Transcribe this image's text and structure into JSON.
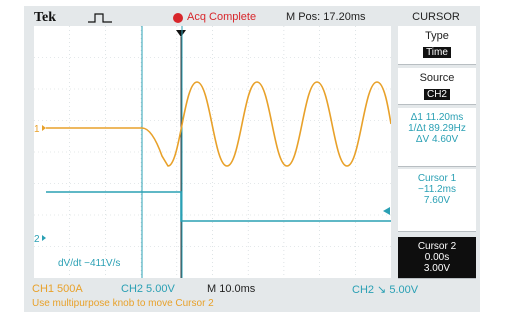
{
  "header": {
    "brand": "Tek",
    "trigger_icon": "pulse-icon",
    "acq_status": "Acq Complete",
    "acq_indicator_color": "#d8262b",
    "m_pos": "M Pos: 17.20ms"
  },
  "screen": {
    "ch1_marker": "1",
    "ch2_marker": "2",
    "ch1_color": "#e8a12a",
    "ch2_color": "#2aa0b4",
    "dvdt": "dV/dt −411V/s"
  },
  "menu": {
    "title": "CURSOR",
    "type_label": "Type",
    "type_value": "Time",
    "source_label": "Source",
    "source_value": "CH2",
    "readout": {
      "delta_t": "Δ1 11.20ms",
      "inv_delta_t": "1/Δt 89.29Hz",
      "delta_v": "ΔV 4.60V"
    },
    "cursor1": {
      "label": "Cursor 1",
      "time": "−11.2ms",
      "volt": "7.60V"
    },
    "cursor2": {
      "label": "Cursor 2",
      "time": "0.00s",
      "volt": "3.00V"
    }
  },
  "bottom": {
    "ch1": "CH1  500A",
    "ch2": "CH2  5.00V",
    "timebase": "M 10.0ms",
    "ch2_trigger": "CH2 ↘ 5.00V",
    "hint": "Use multipurpose knob to move Cursor 2"
  }
}
